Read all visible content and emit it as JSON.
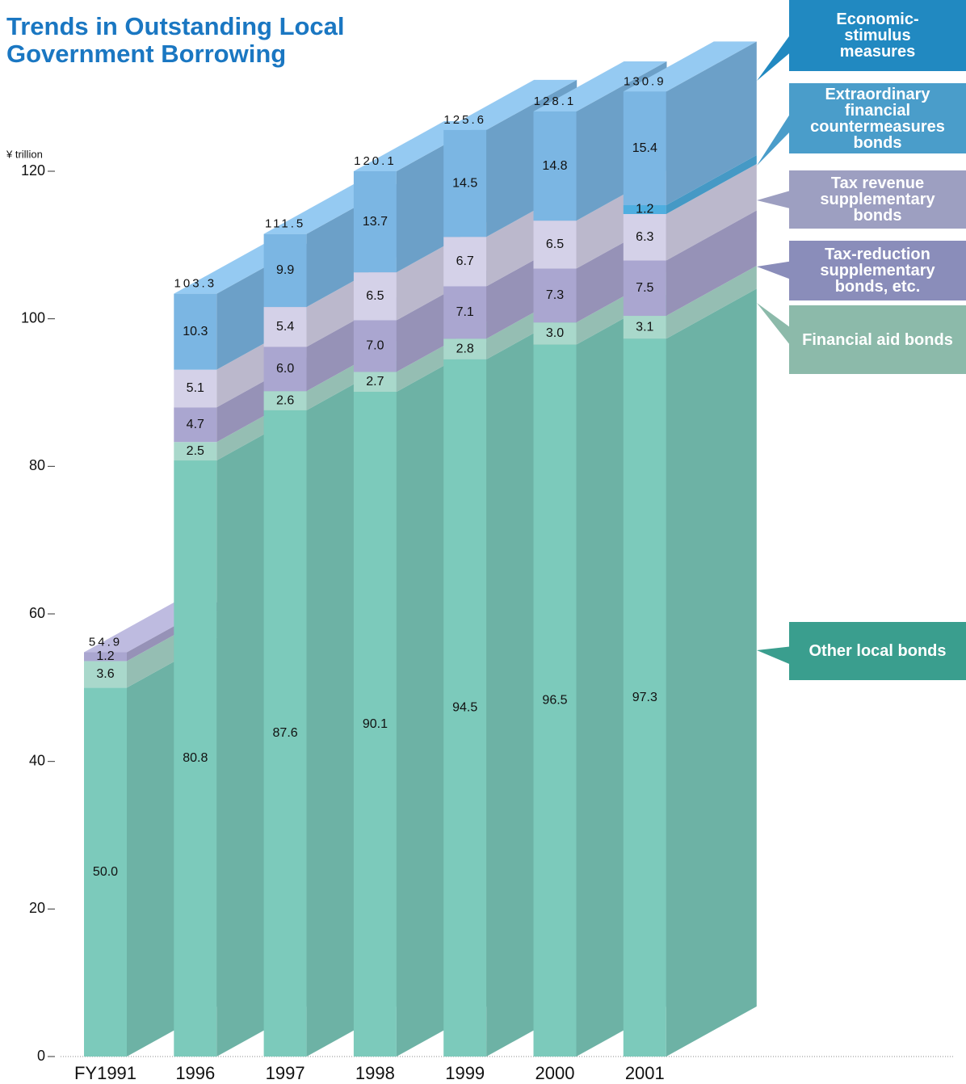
{
  "chart_data": {
    "type": "stacked-bar-3d",
    "title": "Trends in Outstanding Local Government Borrowing",
    "y_label": "¥ trillion",
    "categories": [
      "FY1991",
      "1996",
      "1997",
      "1998",
      "1999",
      "2000",
      "2001"
    ],
    "series": [
      {
        "name": "Other local bonds",
        "color": "#7ccabb",
        "values": [
          50.0,
          80.8,
          87.6,
          90.1,
          94.5,
          96.5,
          97.3
        ],
        "value_labels": [
          "50.0",
          "80.8",
          "87.6",
          "90.1",
          "94.5",
          "96.5",
          "97.3"
        ]
      },
      {
        "name": "Financial aid bonds",
        "color": "#a9d8cb",
        "values": [
          3.6,
          2.5,
          2.6,
          2.7,
          2.8,
          3.0,
          3.1
        ],
        "value_labels": [
          "3.6",
          "2.5",
          "2.6",
          "2.7",
          "2.8",
          "3.0",
          "3.1"
        ]
      },
      {
        "name": "Tax-reduction supplementary bonds, etc.",
        "color": "#aaa6d0",
        "values": [
          1.2,
          4.7,
          6.0,
          7.0,
          7.1,
          7.3,
          7.5
        ],
        "value_labels": [
          "1.2",
          "4.7",
          "6.0",
          "7.0",
          "7.1",
          "7.3",
          "7.5"
        ]
      },
      {
        "name": "Tax revenue supplementary bonds",
        "color": "#d4d1e8",
        "values": [
          null,
          5.1,
          5.4,
          6.5,
          6.7,
          6.5,
          6.3
        ],
        "value_labels": [
          null,
          "5.1",
          "5.4",
          "6.5",
          "6.7",
          "6.5",
          "6.3"
        ]
      },
      {
        "name": "Extraordinary financial countermeasures bonds",
        "color": "#4eaee0",
        "values": [
          null,
          null,
          null,
          null,
          null,
          null,
          1.2
        ],
        "value_labels": [
          null,
          null,
          null,
          null,
          null,
          null,
          "1.2"
        ]
      },
      {
        "name": "Economic-stimulus measures",
        "color": "#7bb6e3",
        "values": [
          null,
          10.3,
          9.9,
          13.7,
          14.5,
          14.8,
          15.4
        ],
        "value_labels": [
          null,
          "10.3",
          "9.9",
          "13.7",
          "14.5",
          "14.8",
          "15.4"
        ]
      }
    ],
    "totals": [
      54.9,
      103.3,
      111.5,
      120.1,
      125.6,
      128.1,
      130.9
    ],
    "ylim": [
      0,
      120
    ],
    "yticks": [
      0,
      20,
      40,
      60,
      80,
      100,
      120
    ]
  }
}
